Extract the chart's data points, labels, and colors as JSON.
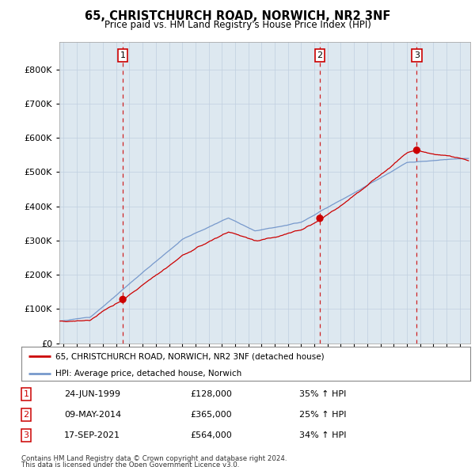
{
  "title": "65, CHRISTCHURCH ROAD, NORWICH, NR2 3NF",
  "subtitle": "Price paid vs. HM Land Registry's House Price Index (HPI)",
  "legend_line1": "65, CHRISTCHURCH ROAD, NORWICH, NR2 3NF (detached house)",
  "legend_line2": "HPI: Average price, detached house, Norwich",
  "red_color": "#cc0000",
  "blue_color": "#7799cc",
  "dashed_color": "#cc0000",
  "label_box_color": "#000000",
  "chart_bg": "#dde8f0",
  "footer1": "Contains HM Land Registry data © Crown copyright and database right 2024.",
  "footer2": "This data is licensed under the Open Government Licence v3.0.",
  "ylim": [
    0,
    880000
  ],
  "yticks": [
    0,
    100000,
    200000,
    300000,
    400000,
    500000,
    600000,
    700000,
    800000
  ],
  "xlim_start": 1994.7,
  "xlim_end": 2025.8,
  "background_color": "#ffffff",
  "grid_color": "#c0cfe0"
}
